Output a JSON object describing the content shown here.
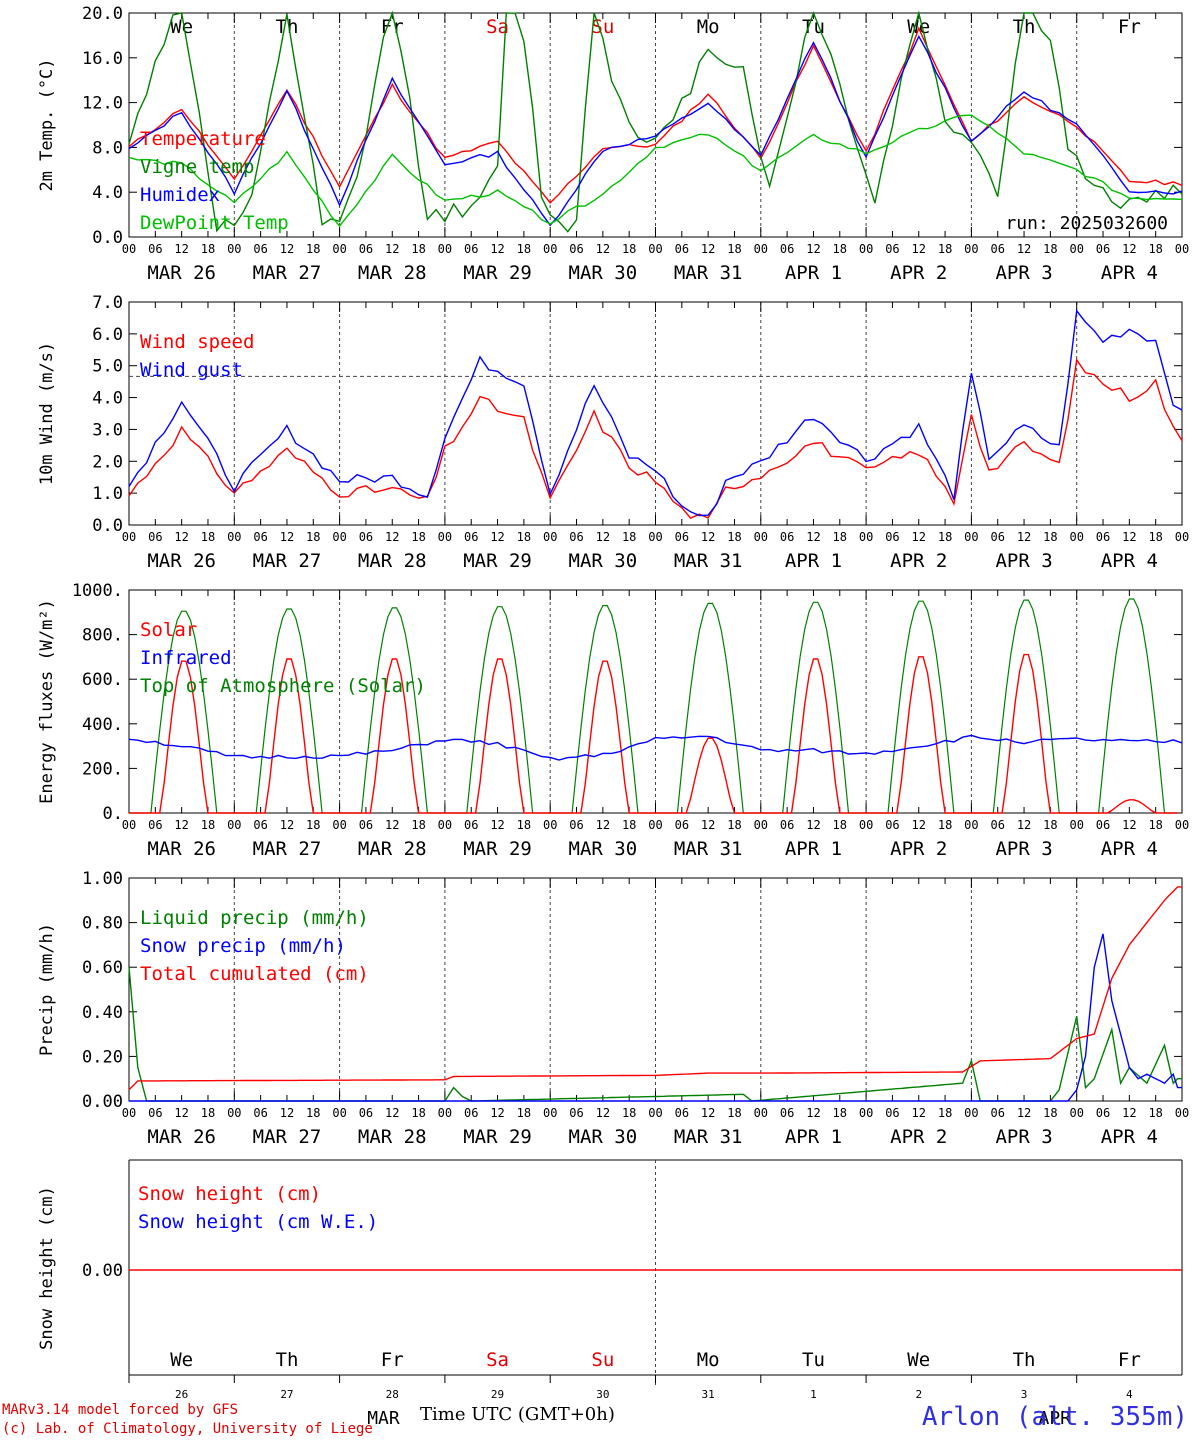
{
  "chart_data": [
    {
      "type": "line",
      "ylabel": "2m Temp. (°C)",
      "ylim": [
        0,
        20
      ],
      "yticks": [
        "0.0",
        "4.0",
        "8.0",
        "12.0",
        "16.0",
        "20.0"
      ],
      "run_label": "run: 2025032600",
      "series": [
        {
          "name": "Temperature",
          "color": "#ff0000",
          "x": [
            0,
            12,
            24,
            36,
            48,
            60,
            72,
            84,
            96,
            108,
            120,
            132,
            144,
            156,
            168,
            180,
            192,
            204,
            216,
            228,
            239
          ],
          "y": [
            8,
            11.5,
            5,
            13.2,
            4.5,
            13.5,
            7,
            8.5,
            3,
            8,
            8.2,
            12.8,
            7,
            17,
            7.5,
            18.5,
            8.5,
            12.5,
            10,
            5,
            4.8
          ]
        },
        {
          "name": "Vigne temp",
          "color": "#008000",
          "x": [
            0,
            6,
            12,
            20,
            24,
            28,
            36,
            44,
            48,
            52,
            60,
            68,
            72,
            80,
            84,
            86,
            90,
            94,
            98,
            100,
            102,
            106,
            110,
            118,
            124,
            132,
            140,
            146,
            156,
            164,
            170,
            180,
            186,
            192,
            198,
            204,
            210,
            214,
            220,
            228,
            236,
            239
          ],
          "y": [
            8,
            16,
            21,
            1,
            1,
            3,
            20,
            1,
            1,
            5,
            22,
            2,
            2,
            3,
            6,
            21,
            18,
            4,
            1,
            0.5,
            2,
            21,
            14,
            8,
            10,
            17,
            15,
            4,
            21,
            11,
            3,
            21,
            10,
            9,
            4,
            21,
            18,
            8,
            4,
            3,
            4,
            4
          ]
        },
        {
          "name": "Humidex",
          "color": "#0000ff",
          "x": [
            0,
            12,
            24,
            36,
            48,
            60,
            72,
            84,
            96,
            108,
            120,
            132,
            144,
            156,
            168,
            180,
            192,
            204,
            216,
            228,
            239
          ],
          "y": [
            7.8,
            11.2,
            4,
            13,
            3,
            14,
            6.5,
            7.5,
            1,
            7.8,
            9,
            12,
            7.2,
            17.5,
            7,
            18,
            8.5,
            13,
            10,
            4.2,
            4
          ]
        },
        {
          "name": "DewPoint Temp",
          "color": "#00c000",
          "x": [
            0,
            12,
            24,
            36,
            48,
            60,
            72,
            84,
            96,
            108,
            120,
            132,
            144,
            156,
            168,
            180,
            192,
            204,
            216,
            228,
            239
          ],
          "y": [
            7,
            6.5,
            3,
            7.5,
            1,
            7.2,
            3.2,
            4,
            1.3,
            3.8,
            8,
            9.2,
            6,
            9,
            7.5,
            9.5,
            11,
            7.5,
            6,
            3.5,
            3.5
          ]
        }
      ]
    },
    {
      "type": "line",
      "ylabel": "10m Wind (m/s)",
      "ylim": [
        0,
        7.5
      ],
      "yticks": [
        "0.0",
        "1.0",
        "2.0",
        "3.0",
        "4.0",
        "5.0",
        "6.0",
        "7.0"
      ],
      "reference_line": 5.0,
      "series": [
        {
          "name": "Wind speed",
          "color": "#ff0000",
          "x": [
            0,
            12,
            24,
            36,
            48,
            60,
            68,
            72,
            80,
            90,
            96,
            106,
            114,
            120,
            126,
            132,
            136,
            144,
            156,
            168,
            180,
            188,
            192,
            196,
            204,
            212,
            216,
            222,
            228,
            234,
            239
          ],
          "y": [
            1,
            3.2,
            1.1,
            2.5,
            1.1,
            1.2,
            0.8,
            2.5,
            4.2,
            3.5,
            0.8,
            3.7,
            2,
            1.5,
            0.5,
            0.1,
            1.2,
            1.7,
            2.8,
            1.8,
            2.5,
            0.8,
            3.8,
            1.8,
            2.7,
            2,
            5.4,
            4.8,
            4.3,
            4.8,
            2.8
          ]
        },
        {
          "name": "Wind gust",
          "color": "#0000ff",
          "x": [
            0,
            12,
            24,
            36,
            48,
            60,
            68,
            72,
            80,
            90,
            96,
            106,
            114,
            120,
            126,
            132,
            136,
            144,
            156,
            168,
            180,
            188,
            192,
            196,
            204,
            212,
            216,
            222,
            228,
            234,
            239
          ],
          "y": [
            1.3,
            4.2,
            1.3,
            3.2,
            1.5,
            1.6,
            1.0,
            3.0,
            5.5,
            4.8,
            1.1,
            4.7,
            2.3,
            1.9,
            0.6,
            0.2,
            1.5,
            2.1,
            3.7,
            2.2,
            3.3,
            1.0,
            5.0,
            2.3,
            3.3,
            2.6,
            7.1,
            6.2,
            6.6,
            6.2,
            3.7
          ]
        }
      ]
    },
    {
      "type": "line",
      "ylabel": "Energy fluxes (W/m²)",
      "ylim": [
        0,
        1000
      ],
      "yticks": [
        "0.",
        "200.",
        "400.",
        "600.",
        "800.",
        "1000."
      ],
      "series": [
        {
          "name": "Solar",
          "color": "#ff0000",
          "daily_peak": [
            690,
            700,
            700,
            700,
            690,
            340,
            700,
            710,
            720,
            60
          ]
        },
        {
          "name": "Infrared",
          "color": "#0000ff",
          "x": [
            0,
            12,
            24,
            48,
            60,
            72,
            84,
            96,
            108,
            120,
            132,
            144,
            156,
            168,
            180,
            192,
            204,
            216,
            228,
            239
          ],
          "y": [
            335,
            300,
            250,
            255,
            280,
            330,
            310,
            240,
            260,
            330,
            345,
            280,
            280,
            265,
            300,
            340,
            320,
            330,
            320,
            320
          ]
        },
        {
          "name": "Top of Atmosphere (Solar)",
          "color": "#008000",
          "daily_peak": [
            910,
            920,
            925,
            930,
            935,
            945,
            950,
            955,
            960,
            965
          ]
        }
      ]
    },
    {
      "type": "line",
      "ylabel": "Precip (mm/h)",
      "ylim": [
        0,
        1
      ],
      "yticks": [
        "0.00",
        "0.20",
        "0.40",
        "0.60",
        "0.80",
        "1.00"
      ],
      "series": [
        {
          "name": "Liquid precip (mm/h)",
          "color": "#008000",
          "x": [
            0,
            2,
            4,
            10,
            72,
            74,
            76,
            78,
            140,
            142,
            190,
            192,
            194,
            210,
            212,
            216,
            218,
            220,
            224,
            226,
            228,
            232,
            236,
            238,
            239
          ],
          "y": [
            0.6,
            0.15,
            0,
            0,
            0,
            0.06,
            0.02,
            0,
            0.03,
            0,
            0.08,
            0.18,
            0,
            0,
            0.05,
            0.38,
            0.06,
            0.1,
            0.32,
            0.08,
            0.15,
            0.08,
            0.25,
            0.08,
            0.1
          ]
        },
        {
          "name": "Snow precip (mm/h)",
          "color": "#0000ff",
          "x": [
            0,
            212,
            214,
            216,
            218,
            220,
            222,
            224,
            226,
            228,
            230,
            232,
            234,
            236,
            238,
            239
          ],
          "y": [
            0,
            0,
            0,
            0.05,
            0.2,
            0.6,
            0.75,
            0.45,
            0.3,
            0.15,
            0.1,
            0.12,
            0.1,
            0.08,
            0.12,
            0.06
          ]
        },
        {
          "name": "Total cumulated (cm)",
          "color": "#ff0000",
          "x": [
            0,
            2,
            72,
            74,
            120,
            132,
            144,
            190,
            194,
            210,
            216,
            220,
            224,
            228,
            232,
            236,
            239
          ],
          "y": [
            0.05,
            0.09,
            0.095,
            0.11,
            0.115,
            0.125,
            0.125,
            0.13,
            0.18,
            0.19,
            0.28,
            0.3,
            0.55,
            0.7,
            0.8,
            0.9,
            0.96
          ]
        }
      ]
    },
    {
      "type": "line",
      "ylabel": "Snow height (cm)",
      "ytick": "0.00",
      "series": [
        {
          "name": "Snow height (cm)",
          "color": "#ff0000",
          "value": 0
        },
        {
          "name": "Snow height (cm W.E.)",
          "color": "#0000ff",
          "value": 0
        }
      ]
    }
  ],
  "days": [
    {
      "abbr": "We",
      "date": "MAR 26",
      "num": "26",
      "weekend": false
    },
    {
      "abbr": "Th",
      "date": "MAR 27",
      "num": "27",
      "weekend": false
    },
    {
      "abbr": "Fr",
      "date": "MAR 28",
      "num": "28",
      "weekend": false
    },
    {
      "abbr": "Sa",
      "date": "MAR 29",
      "num": "29",
      "weekend": true
    },
    {
      "abbr": "Su",
      "date": "MAR 30",
      "num": "30",
      "weekend": true
    },
    {
      "abbr": "Mo",
      "date": "MAR 31",
      "num": "31",
      "weekend": false
    },
    {
      "abbr": "Tu",
      "date": "APR  1",
      "num": "1",
      "weekend": false
    },
    {
      "abbr": "We",
      "date": "APR  2",
      "num": "2",
      "weekend": false
    },
    {
      "abbr": "Th",
      "date": "APR  3",
      "num": "3",
      "weekend": false
    },
    {
      "abbr": "Fr",
      "date": "APR  4",
      "num": "4",
      "weekend": false
    }
  ],
  "hour_ticks": [
    "00",
    "06",
    "12",
    "18"
  ],
  "final_hour_tick": "00",
  "month_labels": {
    "left": "MAR",
    "right": "APR"
  },
  "xlabel": "Time UTC (GMT+0h)",
  "footer": {
    "line1": "MARv3.14 model forced by GFS",
    "line2": "(c) Lab. of Climatology, University of Liege",
    "station": "Arlon (alt. 355m)"
  },
  "colors": {
    "weekend": "#e00000",
    "axis": "#000000"
  }
}
